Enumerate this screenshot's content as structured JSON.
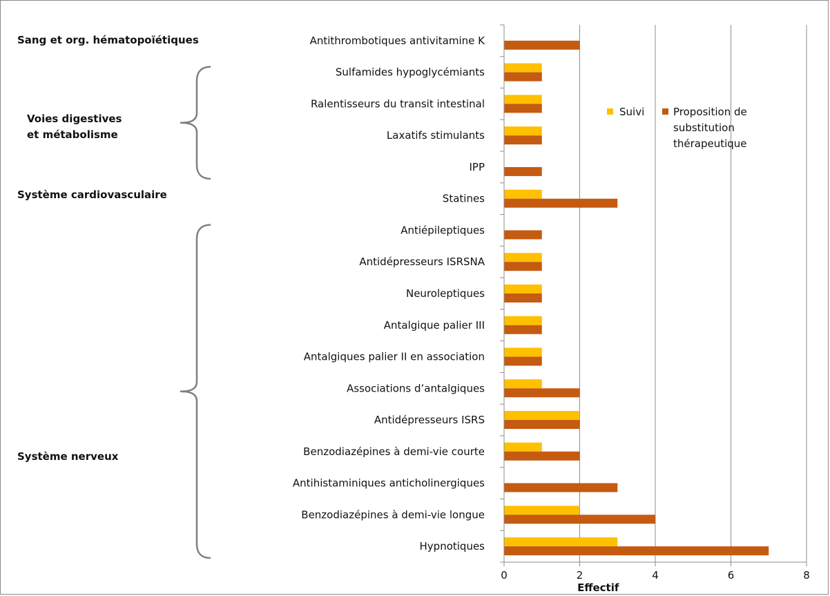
{
  "chart_data": {
    "type": "bar",
    "orientation": "horizontal",
    "title": "",
    "xlabel": "Effectif",
    "ylabel": "",
    "xlim": [
      0,
      8
    ],
    "x_ticks": [
      0,
      2,
      4,
      6,
      8
    ],
    "grid": "vertical",
    "legend_position": "right",
    "categories": [
      "Antithrombotiques antivitamine  K",
      "Sulfamides hypoglycémiants",
      "Ralentisseurs du transit intestinal",
      "Laxatifs stimulants",
      "IPP",
      "Statines",
      "Antiépileptiques",
      "Antidépresseurs ISRSNA",
      "Neuroleptiques",
      "Antalgique palier III",
      "Antalgiques palier II en association",
      "Associations d’antalgiques",
      "Antidépresseurs ISRS",
      "Benzodiazépines à demi-vie courte",
      "Antihistaminiques anticholinergiques",
      "Benzodiazépines à demi-vie longue",
      "Hypnotiques"
    ],
    "series": [
      {
        "name": "Suivi",
        "color": "#ffc000",
        "values": [
          0,
          1,
          1,
          1,
          0,
          1,
          0,
          1,
          1,
          1,
          1,
          1,
          2,
          1,
          0,
          2,
          3
        ]
      },
      {
        "name": "Proposition de substitution thérapeutique",
        "name_lines": [
          "Proposition de",
          "substitution",
          "thérapeutique"
        ],
        "color": "#c55a11",
        "values": [
          2,
          1,
          1,
          1,
          1,
          3,
          1,
          1,
          1,
          1,
          1,
          2,
          2,
          2,
          3,
          4,
          7
        ]
      }
    ],
    "groups": [
      {
        "label_lines": [
          "Sang et org. hématopoïétiques"
        ],
        "categories_from": 0,
        "categories_to": 0,
        "bracket": false
      },
      {
        "label_lines": [
          "Voies digestives",
          "et métabolisme"
        ],
        "categories_from": 1,
        "categories_to": 4,
        "bracket": true
      },
      {
        "label_lines": [
          "Système cardiovasculaire"
        ],
        "categories_from": 5,
        "categories_to": 5,
        "bracket": false
      },
      {
        "label_lines": [
          "Système nerveux"
        ],
        "categories_from": 6,
        "categories_to": 16,
        "bracket": true
      }
    ]
  }
}
